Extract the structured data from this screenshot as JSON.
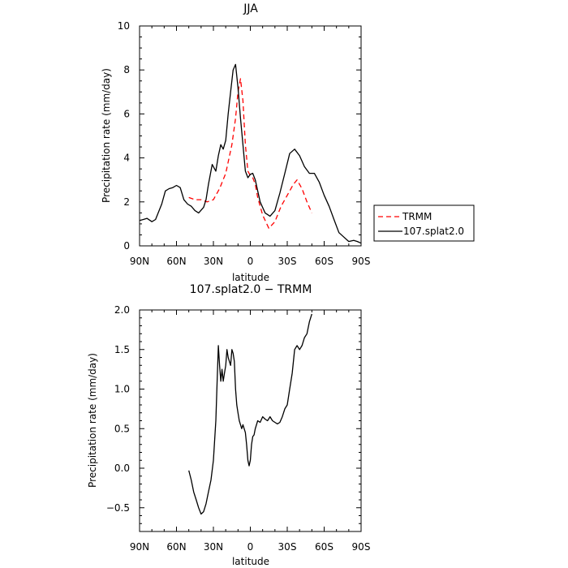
{
  "chart_data": [
    {
      "type": "line",
      "title": "JJA",
      "xlabel": "latitude",
      "ylabel": "Precipitation rate (mm/day)",
      "xlim": [
        90,
        -90
      ],
      "ylim": [
        0,
        10
      ],
      "x_ticks": [
        90,
        60,
        30,
        0,
        -30,
        -60,
        -90
      ],
      "x_tick_labels": [
        "90N",
        "60N",
        "30N",
        "0",
        "30S",
        "60S",
        "90S"
      ],
      "y_ticks": [
        0,
        2,
        4,
        6,
        8,
        10
      ],
      "y_tick_labels": [
        "0",
        "2",
        "4",
        "6",
        "8",
        "10"
      ],
      "legend": {
        "placement": "right",
        "entries": [
          "TRMM",
          "107.splat2.0"
        ]
      },
      "series": [
        {
          "name": "TRMM",
          "color": "#ff0000",
          "dash": "dashed",
          "x": [
            50,
            45,
            40,
            35,
            30,
            25,
            20,
            15,
            12,
            10,
            8,
            6,
            4,
            2,
            0,
            -2,
            -4,
            -6,
            -10,
            -15,
            -20,
            -25,
            -30,
            -35,
            -38,
            -42,
            -46,
            -50
          ],
          "y": [
            2.2,
            2.1,
            2.1,
            2.0,
            2.1,
            2.6,
            3.3,
            4.6,
            5.8,
            7.0,
            7.6,
            6.6,
            4.6,
            3.4,
            3.2,
            3.1,
            2.8,
            2.2,
            1.4,
            0.8,
            1.1,
            1.8,
            2.3,
            2.8,
            3.0,
            2.6,
            2.0,
            1.5
          ]
        },
        {
          "name": "107.splat2.0",
          "color": "#000000",
          "dash": "solid",
          "x": [
            90,
            87,
            84,
            80,
            77,
            72,
            69,
            66,
            63,
            60,
            57,
            54,
            51,
            48,
            45,
            42,
            38,
            36,
            34,
            31,
            28,
            26,
            24,
            22,
            20,
            18,
            16,
            14,
            12,
            10,
            8,
            6,
            4,
            2,
            0,
            -2,
            -4,
            -6,
            -8,
            -12,
            -16,
            -20,
            -24,
            -28,
            -32,
            -36,
            -40,
            -44,
            -48,
            -52,
            -56,
            -60,
            -64,
            -68,
            -72,
            -76,
            -80,
            -84,
            -87,
            -90
          ],
          "y": [
            1.15,
            1.2,
            1.25,
            1.1,
            1.2,
            1.9,
            2.5,
            2.6,
            2.65,
            2.75,
            2.65,
            2.1,
            1.9,
            1.8,
            1.6,
            1.5,
            1.75,
            2.1,
            2.8,
            3.7,
            3.4,
            4.1,
            4.6,
            4.4,
            4.8,
            6.0,
            7.0,
            8.0,
            8.25,
            7.2,
            5.8,
            4.6,
            3.4,
            3.1,
            3.25,
            3.3,
            3.0,
            2.5,
            2.0,
            1.5,
            1.35,
            1.6,
            2.4,
            3.3,
            4.2,
            4.4,
            4.1,
            3.6,
            3.3,
            3.3,
            2.9,
            2.3,
            1.8,
            1.2,
            0.6,
            0.4,
            0.2,
            0.25,
            0.2,
            0.12
          ]
        }
      ]
    },
    {
      "type": "line",
      "title": "107.splat2.0 − TRMM",
      "xlabel": "latitude",
      "ylabel": "Precipitation rate (mm/day)",
      "xlim": [
        90,
        -90
      ],
      "ylim": [
        -0.8,
        2.0
      ],
      "x_ticks": [
        90,
        60,
        30,
        0,
        -30,
        -60,
        -90
      ],
      "x_tick_labels": [
        "90N",
        "60N",
        "30N",
        "0",
        "30S",
        "60S",
        "90S"
      ],
      "y_ticks": [
        -0.5,
        0.0,
        0.5,
        1.0,
        1.5,
        2.0
      ],
      "y_tick_labels": [
        "−0.5",
        "0.0",
        "0.5",
        "1.0",
        "1.5",
        "2.0"
      ],
      "series": [
        {
          "name": "107.splat2.0 − TRMM",
          "color": "#000000",
          "dash": "solid",
          "x": [
            50,
            48,
            46,
            44,
            42,
            40,
            38,
            36,
            34,
            32,
            30,
            28,
            27,
            26,
            25,
            24,
            23,
            22,
            21,
            20,
            19,
            18,
            17,
            16,
            15,
            14,
            13,
            12,
            11,
            10,
            9,
            8,
            7,
            6,
            5,
            4,
            3,
            2,
            1,
            0,
            -1,
            -2,
            -3,
            -4,
            -5,
            -6,
            -8,
            -10,
            -12,
            -14,
            -16,
            -18,
            -20,
            -22,
            -24,
            -26,
            -28,
            -30,
            -32,
            -34,
            -36,
            -38,
            -40,
            -42,
            -44,
            -46,
            -48,
            -50
          ],
          "y": [
            -0.03,
            -0.15,
            -0.3,
            -0.4,
            -0.5,
            -0.58,
            -0.55,
            -0.45,
            -0.3,
            -0.15,
            0.1,
            0.6,
            1.1,
            1.55,
            1.3,
            1.1,
            1.25,
            1.1,
            1.2,
            1.3,
            1.5,
            1.4,
            1.35,
            1.3,
            1.5,
            1.45,
            1.35,
            1.0,
            0.8,
            0.7,
            0.6,
            0.55,
            0.5,
            0.55,
            0.5,
            0.45,
            0.3,
            0.1,
            0.03,
            0.1,
            0.3,
            0.4,
            0.42,
            0.5,
            0.55,
            0.6,
            0.58,
            0.65,
            0.62,
            0.6,
            0.65,
            0.6,
            0.58,
            0.56,
            0.58,
            0.65,
            0.75,
            0.8,
            1.0,
            1.2,
            1.5,
            1.55,
            1.5,
            1.55,
            1.65,
            1.7,
            1.85,
            1.95
          ]
        }
      ]
    }
  ]
}
